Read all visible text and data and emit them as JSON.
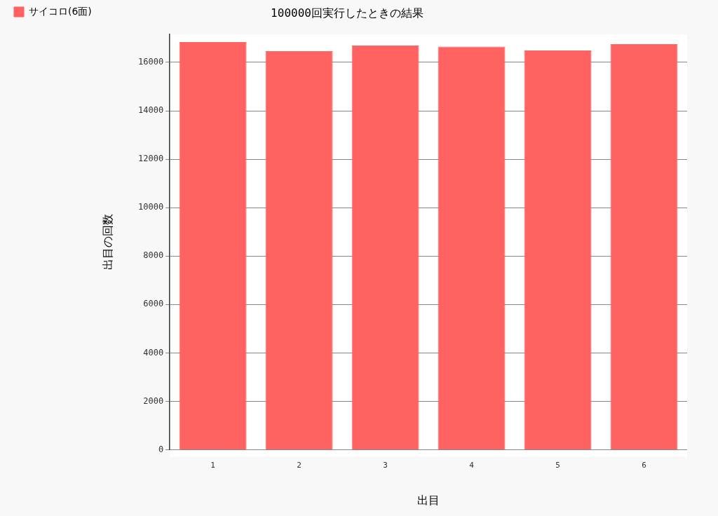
{
  "chart_data": {
    "type": "bar",
    "title": "100000回実行したときの結果",
    "xlabel": "出目",
    "ylabel": "出目の回数",
    "categories": [
      "1",
      "2",
      "3",
      "4",
      "5",
      "6"
    ],
    "series": [
      {
        "name": "サイコロ(6面)",
        "color": "#ff6361",
        "values": [
          16840,
          16460,
          16690,
          16650,
          16490,
          16750
        ]
      }
    ],
    "ylim": [
      0,
      17150
    ],
    "yticks": [
      0,
      2000,
      4000,
      6000,
      8000,
      10000,
      12000,
      14000,
      16000
    ],
    "grid": "y",
    "legend": "top left"
  }
}
